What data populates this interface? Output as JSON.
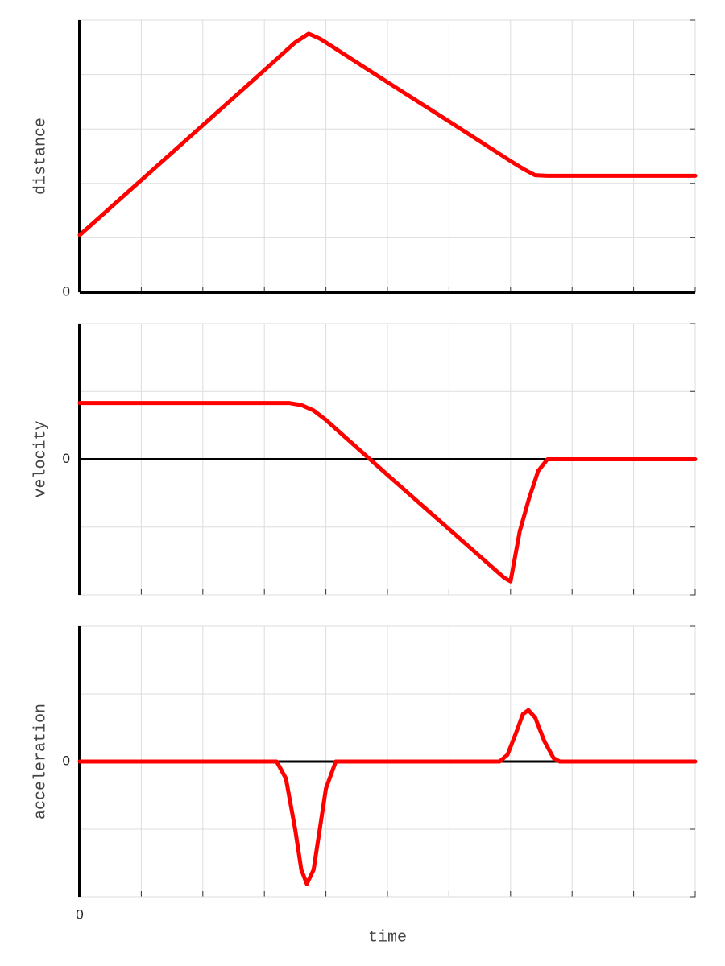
{
  "chart_data": [
    {
      "type": "line",
      "ylabel": "distance",
      "xlim": [
        0,
        10
      ],
      "xgrid": [
        0,
        1,
        2,
        3,
        4,
        5,
        6,
        7,
        8,
        9,
        10
      ],
      "ylim": [
        0,
        5
      ],
      "yticks": [
        0
      ],
      "ygrid": [
        0,
        1,
        2,
        3,
        4,
        5
      ],
      "x": [
        0,
        1,
        2,
        3,
        3.5,
        3.72,
        3.9,
        4,
        5,
        6,
        7,
        7.2,
        7.4,
        7.6,
        8,
        9,
        10
      ],
      "series": [
        {
          "color": "#ff0000",
          "values": [
            1.05,
            2.06,
            3.07,
            4.08,
            4.59,
            4.75,
            4.66,
            4.59,
            3.86,
            3.14,
            2.41,
            2.27,
            2.15,
            2.14,
            2.14,
            2.14,
            2.14
          ]
        }
      ]
    },
    {
      "type": "line",
      "ylabel": "velocity",
      "xlim": [
        0,
        10
      ],
      "xgrid": [
        0,
        1,
        2,
        3,
        4,
        5,
        6,
        7,
        8,
        9,
        10
      ],
      "ylim": [
        -2,
        2
      ],
      "yticks": [
        0
      ],
      "ygrid": [
        -2,
        -1,
        0,
        1,
        2
      ],
      "x": [
        0,
        3.4,
        3.6,
        3.8,
        4,
        5,
        6,
        6.9,
        7,
        7.15,
        7.3,
        7.45,
        7.6,
        10
      ],
      "series": [
        {
          "color": "#ff0000",
          "values": [
            0.83,
            0.83,
            0.8,
            0.72,
            0.58,
            -0.23,
            -1.03,
            -1.75,
            -1.8,
            -1.06,
            -0.58,
            -0.17,
            0,
            0
          ]
        }
      ]
    },
    {
      "type": "line",
      "ylabel": "acceleration",
      "xlabel": "time",
      "xlim": [
        0,
        10
      ],
      "xticks": [
        0
      ],
      "xgrid": [
        0,
        1,
        2,
        3,
        4,
        5,
        6,
        7,
        8,
        9,
        10
      ],
      "ylim": [
        -2,
        2
      ],
      "yticks": [
        0
      ],
      "ygrid": [
        -2,
        -1,
        0,
        1,
        2
      ],
      "x": [
        0,
        3.2,
        3.35,
        3.5,
        3.6,
        3.69,
        3.8,
        3.9,
        4,
        4.16,
        6.82,
        6.95,
        7.1,
        7.2,
        7.29,
        7.4,
        7.55,
        7.7,
        7.8,
        10
      ],
      "series": [
        {
          "color": "#ff0000",
          "values": [
            0,
            0,
            -0.25,
            -1,
            -1.6,
            -1.81,
            -1.6,
            -1,
            -0.4,
            0,
            0,
            0.1,
            0.45,
            0.7,
            0.76,
            0.65,
            0.3,
            0.05,
            0,
            0
          ]
        }
      ]
    }
  ]
}
